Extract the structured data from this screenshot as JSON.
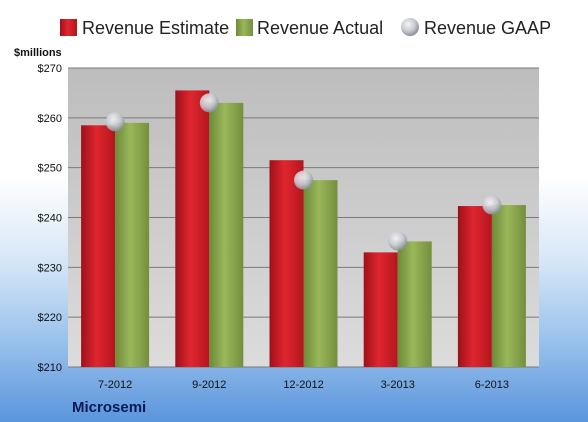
{
  "colors": {
    "estimate": "#cc1f27",
    "actual": "#86a64a",
    "gaap": "#c9ccd3"
  },
  "legend": [
    {
      "label": "Revenue Estimate",
      "key": "estimate"
    },
    {
      "label": "Revenue Actual",
      "key": "actual"
    },
    {
      "label": "Revenue GAAP",
      "key": "gaap"
    }
  ],
  "company": "Microsemi",
  "chart_data": {
    "type": "bar",
    "title": "",
    "ylabel": "$millions",
    "xlabel": "",
    "ylim": [
      210,
      270
    ],
    "ytick_step": 10,
    "ytick_labels": [
      "$210",
      "$220",
      "$230",
      "$240",
      "$250",
      "$260",
      "$270"
    ],
    "grid": true,
    "legend_position": "top",
    "categories": [
      "7-2012",
      "9-2012",
      "12-2012",
      "3-2013",
      "6-2013"
    ],
    "series": [
      {
        "name": "Revenue Estimate",
        "key": "estimate",
        "kind": "bar",
        "values": [
          258.5,
          265.5,
          251.5,
          233,
          242.3
        ]
      },
      {
        "name": "Revenue Actual",
        "key": "actual",
        "kind": "bar",
        "values": [
          259,
          263,
          247.5,
          235.2,
          242.5
        ]
      },
      {
        "name": "Revenue GAAP",
        "key": "gaap",
        "kind": "marker",
        "values": [
          259.2,
          263,
          247.5,
          235.3,
          242.5
        ]
      }
    ]
  }
}
